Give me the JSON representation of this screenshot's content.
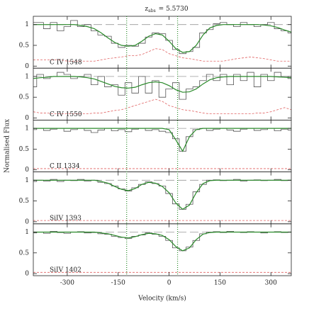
{
  "chart_data": {
    "type": "line",
    "title_symbol": "z",
    "title_subscript": "abs",
    "title_value": "= 5.5730",
    "xlabel": "Velocity (km/s)",
    "ylabel": "Normalised Flux",
    "x": [
      -400,
      -380,
      -360,
      -340,
      -320,
      -300,
      -280,
      -260,
      -240,
      -220,
      -200,
      -180,
      -160,
      -140,
      -120,
      -100,
      -80,
      -60,
      -40,
      -20,
      0,
      20,
      40,
      60,
      80,
      100,
      120,
      140,
      160,
      180,
      200,
      220,
      240,
      260,
      280,
      300,
      320,
      340,
      360
    ],
    "xlim": [
      -400,
      360
    ],
    "xticks": [
      -300,
      -150,
      0,
      150,
      300
    ],
    "ylim": [
      -0.05,
      1.2
    ],
    "yticks": [
      0,
      0.5,
      1
    ],
    "continuum": 1,
    "continuum_color": "#999999",
    "marker_velocities": [
      -125,
      25
    ],
    "marker_color": "#2a8a2a",
    "panels": [
      {
        "label": "C IV 1548",
        "series": [
          {
            "style": "steps",
            "color": "#555555",
            "values": [
              1.05,
              1.05,
              0.9,
              1.05,
              0.85,
              0.95,
              1.1,
              0.95,
              1.0,
              0.85,
              0.75,
              0.72,
              0.55,
              0.45,
              0.5,
              0.48,
              0.55,
              0.7,
              0.8,
              0.78,
              0.62,
              0.4,
              0.3,
              0.35,
              0.45,
              0.8,
              0.88,
              1.02,
              1.05,
              1.0,
              0.95,
              1.05,
              1.0,
              0.95,
              1.0,
              1.05,
              0.9,
              0.85,
              0.8
            ]
          },
          {
            "style": "solid",
            "color": "#2a8a2a",
            "values": [
              1,
              1,
              1,
              1,
              1,
              1,
              1,
              0.98,
              0.95,
              0.9,
              0.8,
              0.68,
              0.57,
              0.5,
              0.48,
              0.5,
              0.6,
              0.72,
              0.78,
              0.75,
              0.6,
              0.42,
              0.33,
              0.35,
              0.5,
              0.75,
              0.92,
              0.98,
              1,
              1,
              1,
              1,
              1,
              1,
              0.99,
              0.97,
              0.93,
              0.87,
              0.82
            ]
          },
          {
            "style": "dashed",
            "color": "#e06060",
            "values": [
              0.15,
              0.15,
              0.15,
              0.15,
              0.15,
              0.12,
              0.12,
              0.12,
              0.12,
              0.12,
              0.15,
              0.18,
              0.2,
              0.22,
              0.25,
              0.25,
              0.28,
              0.35,
              0.42,
              0.4,
              0.3,
              0.25,
              0.2,
              0.18,
              0.15,
              0.12,
              0.12,
              0.12,
              0.12,
              0.15,
              0.18,
              0.2,
              0.22,
              0.2,
              0.18,
              0.15,
              0.12,
              0.12,
              0.12
            ]
          }
        ]
      },
      {
        "label": "C IV 1550",
        "series": [
          {
            "style": "steps",
            "color": "#555555",
            "values": [
              0.75,
              1.05,
              0.95,
              1.0,
              1.1,
              1.05,
              0.95,
              1.0,
              1.05,
              0.8,
              1.0,
              0.75,
              0.8,
              0.55,
              0.85,
              0.6,
              1.0,
              0.6,
              0.9,
              0.5,
              0.7,
              0.85,
              0.45,
              0.7,
              0.75,
              0.9,
              1.05,
              0.9,
              1.05,
              0.8,
              1.05,
              0.9,
              1.1,
              0.75,
              1.05,
              0.9,
              1.1,
              1.0,
              0.95
            ]
          },
          {
            "style": "solid",
            "color": "#2a8a2a",
            "values": [
              0.95,
              0.97,
              0.98,
              1,
              1,
              1,
              1,
              0.99,
              0.97,
              0.94,
              0.88,
              0.82,
              0.76,
              0.73,
              0.72,
              0.74,
              0.8,
              0.85,
              0.87,
              0.85,
              0.78,
              0.68,
              0.62,
              0.63,
              0.7,
              0.82,
              0.92,
              0.97,
              0.99,
              1,
              1,
              1,
              1,
              1,
              1,
              1,
              0.99,
              0.98,
              0.97
            ]
          },
          {
            "style": "dashed",
            "color": "#e06060",
            "values": [
              0.15,
              0.12,
              0.12,
              0.1,
              0.1,
              0.1,
              0.1,
              0.1,
              0.1,
              0.12,
              0.12,
              0.15,
              0.18,
              0.2,
              0.25,
              0.3,
              0.35,
              0.4,
              0.45,
              0.4,
              0.3,
              0.25,
              0.2,
              0.18,
              0.15,
              0.12,
              0.1,
              0.1,
              0.1,
              0.1,
              0.1,
              0.1,
              0.1,
              0.12,
              0.12,
              0.15,
              0.2,
              0.25,
              0.2
            ]
          }
        ]
      },
      {
        "label": "C II 1334",
        "series": [
          {
            "style": "steps",
            "color": "#555555",
            "values": [
              0.97,
              1.0,
              0.95,
              0.98,
              1.0,
              0.93,
              0.97,
              1.0,
              0.95,
              0.9,
              0.96,
              1.0,
              0.94,
              0.97,
              0.92,
              0.98,
              1.0,
              0.95,
              0.97,
              0.93,
              0.9,
              0.75,
              0.45,
              0.8,
              0.97,
              1.0,
              0.95,
              0.98,
              1.0,
              0.96,
              0.93,
              0.98,
              1.0,
              0.95,
              0.97,
              1.0,
              0.94,
              0.98,
              0.96
            ]
          },
          {
            "style": "solid",
            "color": "#2a8a2a",
            "values": [
              1,
              1,
              1,
              1,
              1,
              1,
              1,
              1,
              1,
              1,
              1,
              1,
              1,
              1,
              1,
              1,
              1,
              1,
              1,
              1,
              0.97,
              0.72,
              0.45,
              0.8,
              0.97,
              1,
              1,
              1,
              1,
              1,
              1,
              1,
              1,
              1,
              1,
              1,
              1,
              1,
              1
            ]
          },
          {
            "style": "dashed",
            "color": "#e06060",
            "values": [
              0.03,
              0.03,
              0.03,
              0.03,
              0.03,
              0.03,
              0.03,
              0.03,
              0.03,
              0.03,
              0.03,
              0.03,
              0.03,
              0.03,
              0.03,
              0.03,
              0.03,
              0.03,
              0.03,
              0.03,
              0.03,
              0.03,
              0.03,
              0.03,
              0.03,
              0.03,
              0.03,
              0.03,
              0.03,
              0.03,
              0.03,
              0.03,
              0.03,
              0.03,
              0.03,
              0.03,
              0.03,
              0.03,
              0.03
            ]
          }
        ]
      },
      {
        "label": "SiIV 1393",
        "series": [
          {
            "style": "steps",
            "color": "#555555",
            "values": [
              0.97,
              1.0,
              0.98,
              1.02,
              0.97,
              1.0,
              0.99,
              1.02,
              0.98,
              1.0,
              0.95,
              0.92,
              0.86,
              0.79,
              0.74,
              0.82,
              0.9,
              0.96,
              0.92,
              0.86,
              0.68,
              0.43,
              0.3,
              0.42,
              0.72,
              0.9,
              1.0,
              1.01,
              0.99,
              1.0,
              1.02,
              0.98,
              1.0,
              1.01,
              0.99,
              1.0,
              1.02,
              0.99,
              1.0
            ]
          },
          {
            "style": "solid",
            "color": "#2a8a2a",
            "values": [
              1,
              1,
              1,
              1,
              1,
              1,
              1,
              1,
              1,
              1,
              0.97,
              0.93,
              0.85,
              0.78,
              0.75,
              0.8,
              0.9,
              0.95,
              0.93,
              0.85,
              0.7,
              0.45,
              0.3,
              0.4,
              0.7,
              0.92,
              0.99,
              1,
              1,
              1,
              1,
              1,
              1,
              1,
              1,
              1,
              1,
              1,
              1
            ]
          },
          {
            "style": "dashed",
            "color": "#e06060",
            "values": [
              0.03,
              0.03,
              0.03,
              0.03,
              0.03,
              0.03,
              0.03,
              0.03,
              0.03,
              0.03,
              0.03,
              0.03,
              0.03,
              0.03,
              0.03,
              0.03,
              0.03,
              0.03,
              0.03,
              0.03,
              0.03,
              0.03,
              0.03,
              0.03,
              0.03,
              0.03,
              0.03,
              0.03,
              0.03,
              0.03,
              0.03,
              0.03,
              0.03,
              0.03,
              0.03,
              0.03,
              0.03,
              0.03,
              0.03
            ]
          }
        ]
      },
      {
        "label": "SiIV 1402",
        "series": [
          {
            "style": "steps",
            "color": "#555555",
            "values": [
              0.98,
              1.0,
              0.97,
              1.02,
              0.99,
              0.97,
              1.0,
              1.01,
              0.98,
              0.99,
              0.96,
              0.95,
              0.9,
              0.87,
              0.85,
              0.9,
              0.93,
              0.98,
              0.95,
              0.9,
              0.8,
              0.62,
              0.55,
              0.64,
              0.8,
              0.96,
              1.0,
              1.01,
              0.99,
              1.02,
              1.0,
              0.99,
              1.01,
              1.0,
              0.98,
              1.0,
              1.01,
              0.99,
              1.0
            ]
          },
          {
            "style": "solid",
            "color": "#2a8a2a",
            "values": [
              1,
              1,
              1,
              1,
              1,
              1,
              1,
              1,
              1,
              1,
              0.98,
              0.96,
              0.92,
              0.88,
              0.86,
              0.89,
              0.94,
              0.97,
              0.96,
              0.92,
              0.82,
              0.65,
              0.55,
              0.62,
              0.82,
              0.95,
              0.99,
              1,
              1,
              1,
              1,
              1,
              1,
              1,
              1,
              1,
              1,
              1,
              1
            ]
          },
          {
            "style": "dashed",
            "color": "#e06060",
            "values": [
              0.03,
              0.03,
              0.03,
              0.03,
              0.03,
              0.03,
              0.03,
              0.03,
              0.03,
              0.03,
              0.03,
              0.03,
              0.03,
              0.03,
              0.03,
              0.03,
              0.03,
              0.03,
              0.03,
              0.03,
              0.03,
              0.03,
              0.03,
              0.03,
              0.03,
              0.03,
              0.03,
              0.03,
              0.03,
              0.03,
              0.03,
              0.03,
              0.03,
              0.03,
              0.03,
              0.03,
              0.03,
              0.03,
              0.03
            ]
          }
        ]
      }
    ]
  }
}
